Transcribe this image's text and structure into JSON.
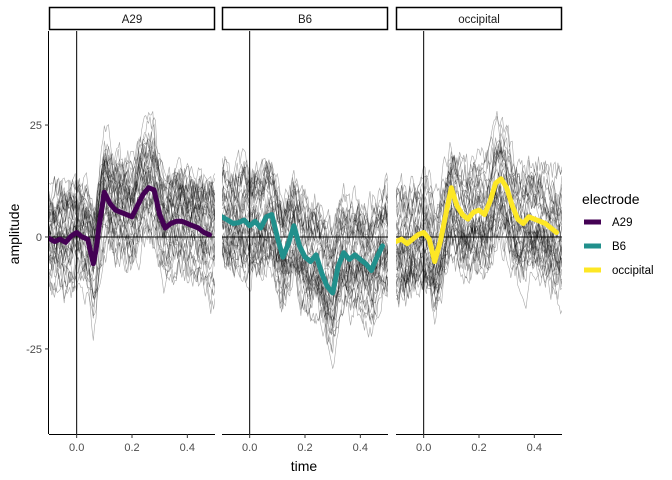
{
  "chart_data": {
    "type": "line",
    "panels": [
      "A29",
      "B6",
      "occipital"
    ],
    "xlabel": "time",
    "ylabel": "amplitude",
    "xlim": [
      -0.1,
      0.5
    ],
    "ylim": [
      -44,
      46
    ],
    "xticks": [
      0.0,
      0.2,
      0.4
    ],
    "xtick_labels": [
      "0.0",
      "0.2",
      "0.4"
    ],
    "yticks": [
      -25,
      0,
      25
    ],
    "ytick_labels": [
      "-25",
      "0",
      "25"
    ],
    "reference_lines": {
      "x": 0,
      "y": 0
    },
    "grid": false,
    "legend": {
      "title": "electrode",
      "placement": "right",
      "entries": [
        {
          "name": "A29",
          "color": "#440154"
        },
        {
          "name": "B6",
          "color": "#21908C"
        },
        {
          "name": "occipital",
          "color": "#FDE725"
        }
      ]
    },
    "trial_traces": {
      "color": "#000000",
      "opacity": 0.35,
      "approx_count_per_panel": 40
    },
    "series": [
      {
        "name": "A29",
        "color": "#440154",
        "x": [
          -0.1,
          -0.08,
          -0.06,
          -0.04,
          -0.02,
          0.0,
          0.02,
          0.04,
          0.06,
          0.07,
          0.08,
          0.1,
          0.12,
          0.14,
          0.16,
          0.18,
          0.2,
          0.22,
          0.24,
          0.26,
          0.28,
          0.3,
          0.32,
          0.34,
          0.36,
          0.38,
          0.4,
          0.42,
          0.44,
          0.46,
          0.48
        ],
        "y": [
          -0.3,
          -1.0,
          -0.5,
          -1.2,
          0.2,
          1.0,
          0.0,
          -0.5,
          -6.0,
          -3.0,
          2.0,
          10.0,
          7.5,
          6.0,
          5.5,
          5.0,
          4.5,
          7.0,
          9.5,
          11.0,
          10.5,
          5.0,
          2.0,
          3.0,
          3.5,
          3.5,
          3.0,
          2.5,
          2.0,
          1.0,
          0.5
        ]
      },
      {
        "name": "B6",
        "color": "#21908C",
        "x": [
          -0.1,
          -0.08,
          -0.06,
          -0.04,
          -0.02,
          0.0,
          0.02,
          0.04,
          0.06,
          0.08,
          0.1,
          0.12,
          0.14,
          0.16,
          0.18,
          0.2,
          0.22,
          0.24,
          0.26,
          0.28,
          0.3,
          0.32,
          0.34,
          0.36,
          0.38,
          0.4,
          0.42,
          0.44,
          0.46,
          0.48
        ],
        "y": [
          4.5,
          3.8,
          3.0,
          3.2,
          3.8,
          2.5,
          3.5,
          2.0,
          4.5,
          5.0,
          0.0,
          -4.5,
          -1.5,
          2.5,
          -2.0,
          -4.5,
          -5.5,
          -4.0,
          -8.0,
          -11.0,
          -12.5,
          -6.5,
          -3.5,
          -5.0,
          -4.0,
          -5.0,
          -6.0,
          -7.5,
          -4.5,
          -2.0
        ]
      },
      {
        "name": "occipital",
        "color": "#FDE725",
        "x": [
          -0.1,
          -0.08,
          -0.06,
          -0.04,
          -0.02,
          0.0,
          0.02,
          0.04,
          0.06,
          0.08,
          0.1,
          0.12,
          0.14,
          0.16,
          0.18,
          0.2,
          0.22,
          0.24,
          0.26,
          0.28,
          0.3,
          0.32,
          0.34,
          0.36,
          0.38,
          0.4,
          0.42,
          0.44,
          0.46,
          0.48
        ],
        "y": [
          -1.0,
          -0.5,
          -1.5,
          -0.5,
          0.5,
          1.0,
          -0.5,
          -5.5,
          -1.0,
          5.0,
          11.0,
          7.0,
          5.0,
          4.0,
          5.5,
          6.0,
          5.0,
          8.0,
          12.0,
          13.0,
          11.0,
          7.0,
          4.0,
          3.0,
          4.5,
          4.0,
          3.5,
          3.0,
          2.0,
          1.0
        ]
      }
    ]
  }
}
